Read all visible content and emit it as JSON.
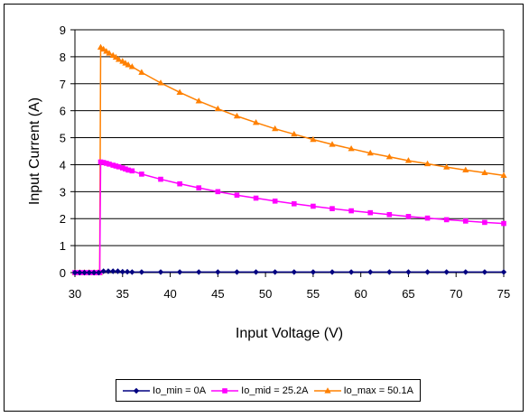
{
  "chart_data": {
    "type": "line",
    "title": "",
    "xlabel": "Input Voltage (V)",
    "ylabel": "Input Current (A)",
    "xlim": [
      30,
      75
    ],
    "ylim": [
      0,
      9
    ],
    "x_ticks": [
      "30",
      "35",
      "40",
      "45",
      "50",
      "55",
      "60",
      "65",
      "70",
      "75"
    ],
    "y_ticks": [
      "0",
      "1",
      "2",
      "3",
      "4",
      "5",
      "6",
      "7",
      "8",
      "9"
    ],
    "grid": "horizontal",
    "legend": "bottom",
    "series": [
      {
        "name": "Io_min = 0A",
        "color": "#000080",
        "marker": "diamond",
        "points": [
          [
            30,
            0
          ],
          [
            30.5,
            0
          ],
          [
            31,
            0
          ],
          [
            31.5,
            0
          ],
          [
            32,
            0
          ],
          [
            32.5,
            0
          ],
          [
            33,
            0.05
          ],
          [
            33.5,
            0.05
          ],
          [
            34,
            0.05
          ],
          [
            34.5,
            0.05
          ],
          [
            35,
            0.03
          ],
          [
            35.5,
            0.03
          ],
          [
            36,
            0.02
          ],
          [
            37,
            0.02
          ],
          [
            39,
            0.02
          ],
          [
            41,
            0.02
          ],
          [
            43,
            0.02
          ],
          [
            45,
            0.02
          ],
          [
            47,
            0.02
          ],
          [
            49,
            0.02
          ],
          [
            51,
            0.02
          ],
          [
            53,
            0.02
          ],
          [
            55,
            0.02
          ],
          [
            57,
            0.02
          ],
          [
            59,
            0.02
          ],
          [
            61,
            0.02
          ],
          [
            63,
            0.02
          ],
          [
            65,
            0.02
          ],
          [
            67,
            0.02
          ],
          [
            69,
            0.02
          ],
          [
            71,
            0.02
          ],
          [
            73,
            0.02
          ],
          [
            75,
            0.02
          ]
        ]
      },
      {
        "name": "Io_mid = 25.2A",
        "color": "#FF00FF",
        "marker": "square",
        "points": [
          [
            30,
            0
          ],
          [
            30.5,
            0
          ],
          [
            31,
            0
          ],
          [
            31.5,
            0
          ],
          [
            32,
            0
          ],
          [
            32.4,
            0
          ],
          [
            32.6,
            0
          ],
          [
            32.7,
            4.1
          ],
          [
            33,
            4.08
          ],
          [
            33.3,
            4.05
          ],
          [
            33.6,
            4.02
          ],
          [
            34,
            3.98
          ],
          [
            34.3,
            3.95
          ],
          [
            34.6,
            3.92
          ],
          [
            35,
            3.88
          ],
          [
            35.3,
            3.84
          ],
          [
            35.6,
            3.8
          ],
          [
            36,
            3.77
          ],
          [
            37,
            3.65
          ],
          [
            39,
            3.46
          ],
          [
            41,
            3.29
          ],
          [
            43,
            3.14
          ],
          [
            45,
            3.0
          ],
          [
            47,
            2.87
          ],
          [
            49,
            2.76
          ],
          [
            51,
            2.65
          ],
          [
            53,
            2.55
          ],
          [
            55,
            2.46
          ],
          [
            57,
            2.37
          ],
          [
            59,
            2.29
          ],
          [
            61,
            2.22
          ],
          [
            63,
            2.15
          ],
          [
            65,
            2.08
          ],
          [
            67,
            2.02
          ],
          [
            69,
            1.96
          ],
          [
            71,
            1.91
          ],
          [
            73,
            1.86
          ],
          [
            75,
            1.82
          ]
        ]
      },
      {
        "name": "Io_max = 50.1A",
        "color": "#FF8000",
        "marker": "triangle",
        "points": [
          [
            30,
            0
          ],
          [
            30.5,
            0
          ],
          [
            31,
            0
          ],
          [
            31.5,
            0
          ],
          [
            32,
            0
          ],
          [
            32.4,
            0
          ],
          [
            32.6,
            0
          ],
          [
            32.7,
            8.35
          ],
          [
            33,
            8.28
          ],
          [
            33.3,
            8.2
          ],
          [
            33.6,
            8.13
          ],
          [
            34,
            8.05
          ],
          [
            34.3,
            7.98
          ],
          [
            34.6,
            7.9
          ],
          [
            35,
            7.83
          ],
          [
            35.3,
            7.76
          ],
          [
            35.6,
            7.7
          ],
          [
            36,
            7.63
          ],
          [
            37,
            7.42
          ],
          [
            39,
            7.03
          ],
          [
            41,
            6.68
          ],
          [
            43,
            6.36
          ],
          [
            45,
            6.07
          ],
          [
            47,
            5.8
          ],
          [
            49,
            5.56
          ],
          [
            51,
            5.33
          ],
          [
            53,
            5.13
          ],
          [
            55,
            4.93
          ],
          [
            57,
            4.75
          ],
          [
            59,
            4.59
          ],
          [
            61,
            4.43
          ],
          [
            63,
            4.29
          ],
          [
            65,
            4.15
          ],
          [
            67,
            4.03
          ],
          [
            69,
            3.91
          ],
          [
            71,
            3.8
          ],
          [
            73,
            3.7
          ],
          [
            75,
            3.6
          ]
        ]
      }
    ]
  }
}
